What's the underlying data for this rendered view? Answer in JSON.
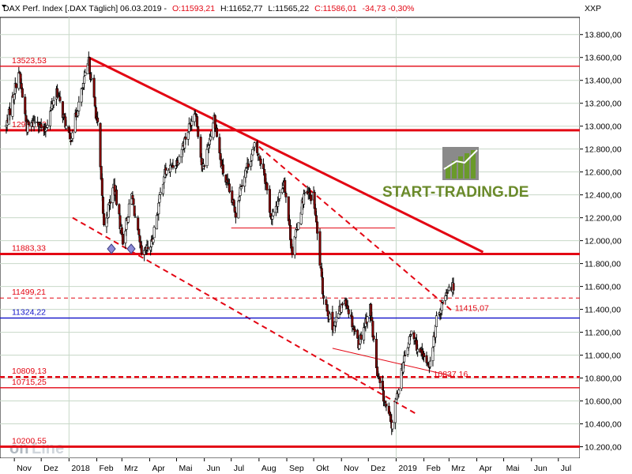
{
  "header": {
    "title": "DAX Perf. Index [.DAX  Täglich] 06.03.2019 -",
    "open": "O:11593,21",
    "high": "H:11652,77",
    "low": "L:11565,22",
    "close": "C:11586,01",
    "change": "-34,73 -0,30%",
    "axis_code": "XXP"
  },
  "watermark": {
    "brand": "START-TRADING.DE",
    "bottom_logo": "onLine",
    "bottom_logo_prefix": "on",
    "bottom_logo_suffix": "Line"
  },
  "colors": {
    "resistance": "#e30613",
    "support_blue": "#1010c8",
    "bull_candle": "#ffffff",
    "bear_candle": "#8b0000",
    "grid": "#c8d8c8",
    "axis_bg": "#ffffff"
  },
  "chart_data": {
    "type": "candlestick",
    "ylim": [
      10100,
      13950
    ],
    "yticks": [
      "10.200,00",
      "10.400,00",
      "10.600,00",
      "10.800,00",
      "11.000,00",
      "11.200,00",
      "11.400,00",
      "11.600,00",
      "11.800,00",
      "12.000,00",
      "12.200,00",
      "12.400,00",
      "12.600,00",
      "12.800,00",
      "13.000,00",
      "13.200,00",
      "13.400,00",
      "13.600,00",
      "13.800,00"
    ],
    "ytick_values": [
      10200,
      10400,
      10600,
      10800,
      11000,
      11200,
      11400,
      11600,
      11800,
      12000,
      12200,
      12400,
      12600,
      12800,
      13000,
      13200,
      13400,
      13600,
      13800
    ],
    "xticks": [
      "Nov",
      "Dez",
      "2018",
      "Feb",
      "Mrz",
      "Apr",
      "Mai",
      "Jun",
      "Jul",
      "Aug",
      "Sep",
      "Okt",
      "Nov",
      "Dez",
      "2019",
      "Feb",
      "Mrz",
      "Apr",
      "Mai",
      "Jun",
      "Jul"
    ],
    "xtick_dates": [
      "2017-11-01",
      "2017-12-01",
      "2018-01-01",
      "2018-02-01",
      "2018-03-01",
      "2018-04-01",
      "2018-05-01",
      "2018-06-01",
      "2018-07-01",
      "2018-08-01",
      "2018-09-01",
      "2018-10-01",
      "2018-11-01",
      "2018-12-01",
      "2019-01-01",
      "2019-02-01",
      "2019-03-01",
      "2019-04-01",
      "2019-05-01",
      "2019-06-01",
      "2019-07-01"
    ],
    "price_path": [
      [
        "2017-10-23",
        13000
      ],
      [
        "2017-11-06",
        13480
      ],
      [
        "2017-11-15",
        12990
      ],
      [
        "2017-11-27",
        13060
      ],
      [
        "2017-12-04",
        12930
      ],
      [
        "2017-12-18",
        13320
      ],
      [
        "2018-01-02",
        12870
      ],
      [
        "2018-01-23",
        13560
      ],
      [
        "2018-02-02",
        13000
      ],
      [
        "2018-02-09",
        12120
      ],
      [
        "2018-02-20",
        12480
      ],
      [
        "2018-03-02",
        12000
      ],
      [
        "2018-03-12",
        12400
      ],
      [
        "2018-03-23",
        11860
      ],
      [
        "2018-04-03",
        11970
      ],
      [
        "2018-04-17",
        12580
      ],
      [
        "2018-05-02",
        12700
      ],
      [
        "2018-05-22",
        13150
      ],
      [
        "2018-05-30",
        12600
      ],
      [
        "2018-06-12",
        13080
      ],
      [
        "2018-06-20",
        12650
      ],
      [
        "2018-07-06",
        12240
      ],
      [
        "2018-07-12",
        12500
      ],
      [
        "2018-07-27",
        12820
      ],
      [
        "2018-08-06",
        12640
      ],
      [
        "2018-08-15",
        12170
      ],
      [
        "2018-08-29",
        12530
      ],
      [
        "2018-09-07",
        11900
      ],
      [
        "2018-09-20",
        12400
      ],
      [
        "2018-10-01",
        12380
      ],
      [
        "2018-10-11",
        11560
      ],
      [
        "2018-10-22",
        11230
      ],
      [
        "2018-11-05",
        11500
      ],
      [
        "2018-11-20",
        11100
      ],
      [
        "2018-12-03",
        11420
      ],
      [
        "2018-12-11",
        10820
      ],
      [
        "2018-12-27",
        10380
      ],
      [
        "2019-01-07",
        10870
      ],
      [
        "2019-01-18",
        11200
      ],
      [
        "2019-01-28",
        11000
      ],
      [
        "2019-02-08",
        10920
      ],
      [
        "2019-02-15",
        11300
      ],
      [
        "2019-02-25",
        11540
      ],
      [
        "2019-03-01",
        11610
      ],
      [
        "2019-03-06",
        11586
      ]
    ],
    "levels": [
      {
        "label": "13523,53",
        "value": 13523.53,
        "style": "solid",
        "color": "#e30613"
      },
      {
        "label": "12963,93",
        "value": 12963.93,
        "style": "solid-bold",
        "color": "#e30613"
      },
      {
        "label": "11883,33",
        "value": 11883.33,
        "style": "solid-bold",
        "color": "#e30613"
      },
      {
        "label": "11499,21",
        "value": 11499.21,
        "style": "dashed",
        "color": "#e30613"
      },
      {
        "label": "11324,22",
        "value": 11324.22,
        "style": "solid",
        "color": "#1010c8"
      },
      {
        "label": "10809,13",
        "value": 10809.13,
        "style": "dashed-bold",
        "color": "#e30613"
      },
      {
        "label": "10715,25",
        "value": 10715.25,
        "style": "solid",
        "color": "#e30613"
      },
      {
        "label": "10200,55",
        "value": 10200.55,
        "style": "solid-bold",
        "color": "#e30613"
      }
    ],
    "annotations": [
      {
        "label": "11415,07",
        "date": "2019-03-04",
        "value": 11415.07
      },
      {
        "label": "10837,16",
        "date": "2019-02-08",
        "value": 10837.16
      }
    ],
    "trendlines": [
      {
        "name": "main-downtrend",
        "from": [
          "2018-01-23",
          13600
        ],
        "to": [
          "2019-04-08",
          11900
        ],
        "style": "solid"
      },
      {
        "name": "channel-upper",
        "from": [
          "2018-08-01",
          12820
        ],
        "to": [
          "2019-03-04",
          11390
        ],
        "style": "dashed"
      },
      {
        "name": "channel-lower",
        "from": [
          "2018-01-05",
          12200
        ],
        "to": [
          "2019-01-25",
          10480
        ],
        "style": "dashed"
      },
      {
        "name": "horizontal-12110",
        "from": [
          "2018-07-01",
          12110
        ],
        "to": [
          "2018-12-31",
          12110
        ],
        "style": "solid-thin"
      },
      {
        "name": "support-channel",
        "from": [
          "2018-10-22",
          11060
        ],
        "to": [
          "2019-03-03",
          10820
        ],
        "style": "solid-thin"
      }
    ]
  }
}
